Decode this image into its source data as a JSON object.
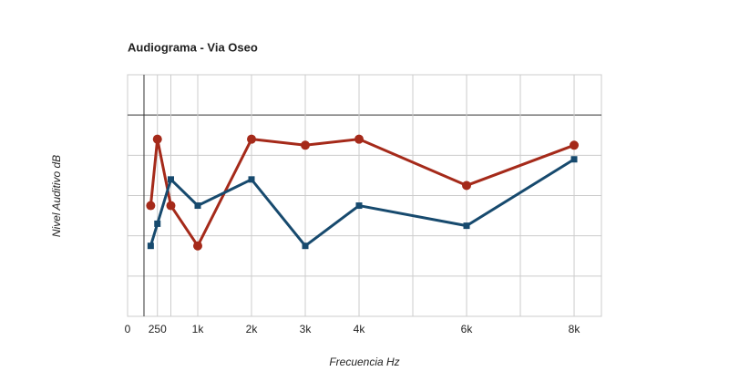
{
  "chart_data": {
    "type": "line",
    "title": "Audiograma - Via Oseo",
    "x_label": "Frecuencia Hz",
    "y_label": "Nivel Auditivo dB",
    "xlim": [
      -305,
      8508
    ],
    "ylim": [
      -10,
      50
    ],
    "y_inverted": true,
    "grid": true,
    "xticks": [
      {
        "value": 0,
        "label": "0"
      },
      {
        "value": 250,
        "label": "250"
      },
      {
        "value": 500,
        "label": null
      },
      {
        "value": 1000,
        "label": "1k"
      },
      {
        "value": 2000,
        "label": "2k"
      },
      {
        "value": 3000,
        "label": "3k"
      },
      {
        "value": 4000,
        "label": "4k"
      },
      {
        "value": 5000,
        "label": null
      },
      {
        "value": 6000,
        "label": "6k"
      },
      {
        "value": 7000,
        "label": null
      },
      {
        "value": 8000,
        "label": "8k"
      }
    ],
    "yticks": [
      {
        "value": 0,
        "label": null
      },
      {
        "value": 10,
        "label": null
      },
      {
        "value": 20,
        "label": null
      },
      {
        "value": 30,
        "label": null
      },
      {
        "value": 40,
        "label": null
      }
    ],
    "series": [
      {
        "color": "#a52a1a",
        "marker": "circle",
        "x": [
          125,
          250,
          500,
          1000,
          2000,
          3000,
          4000,
          6000,
          8000
        ],
        "values": [
          22.5,
          6,
          22.5,
          32.5,
          6,
          7.5,
          6,
          17.5,
          7.5
        ]
      },
      {
        "color": "#174a6e",
        "marker": "square",
        "x": [
          125,
          250,
          500,
          1000,
          2000,
          3000,
          4000,
          6000,
          8000
        ],
        "values": [
          32.5,
          27,
          16,
          22.5,
          16,
          32.5,
          22.5,
          27.5,
          11
        ]
      }
    ]
  }
}
